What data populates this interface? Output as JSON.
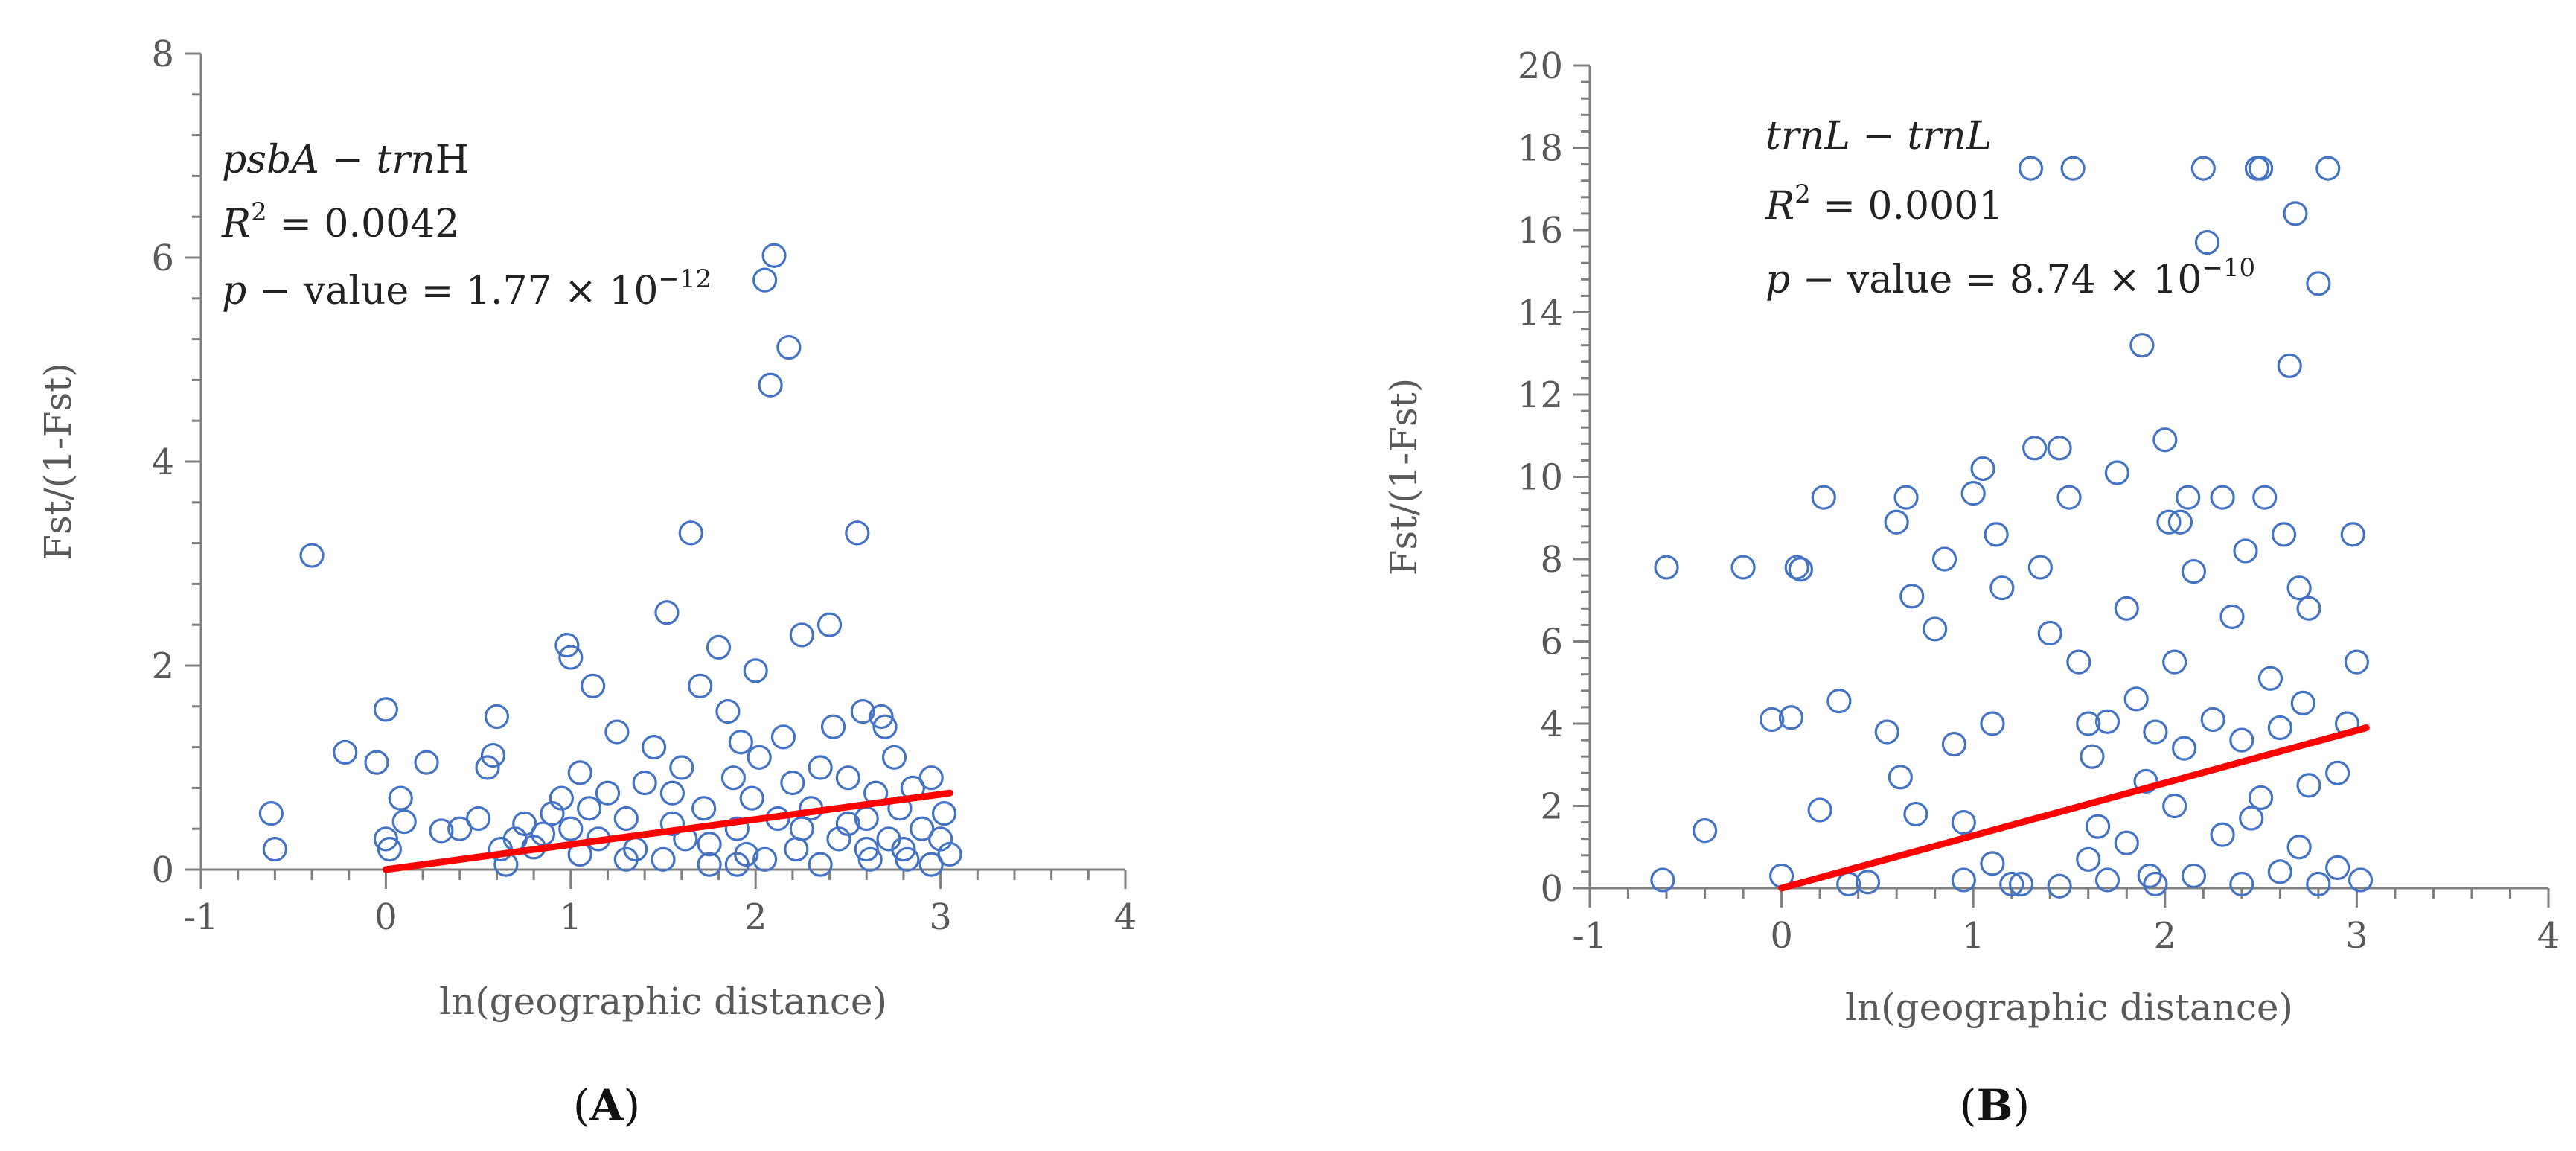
{
  "chart_data": [
    {
      "type": "scatter",
      "panel_label": "(A)",
      "panel_letter": "A",
      "title": "",
      "xlabel": "ln(geographic distance)",
      "ylabel": "Fst/(1-Fst)",
      "xlim": [
        -1,
        4
      ],
      "ylim": [
        0,
        8
      ],
      "xticks": [
        "-1",
        "0",
        "1",
        "2",
        "3",
        "4"
      ],
      "yticks": [
        "0",
        "2",
        "4",
        "6",
        "8"
      ],
      "annotation": {
        "gene_a": "psbA",
        "dash": " − ",
        "gene_b": "trn",
        "gene_suffix": "H",
        "r2_label": "R",
        "r2_sup": "2",
        "r2_value": " = 0.0042",
        "p_label": "p",
        "p_text": " − value = 1.77 × 10",
        "p_exp": "−12"
      },
      "trendline": {
        "color": "#ff0000",
        "x": [
          0,
          3.05
        ],
        "y": [
          0,
          0.75
        ]
      },
      "marker_color": "#4472c4",
      "points": [
        [
          -0.62,
          0.55
        ],
        [
          -0.6,
          0.2
        ],
        [
          -0.4,
          3.08
        ],
        [
          -0.22,
          1.15
        ],
        [
          -0.05,
          1.05
        ],
        [
          0.0,
          0.3
        ],
        [
          0.0,
          1.57
        ],
        [
          0.02,
          0.2
        ],
        [
          0.08,
          0.7
        ],
        [
          0.1,
          0.47
        ],
        [
          0.22,
          1.05
        ],
        [
          0.3,
          0.38
        ],
        [
          0.4,
          0.4
        ],
        [
          0.5,
          0.5
        ],
        [
          0.55,
          1.0
        ],
        [
          0.58,
          1.12
        ],
        [
          0.6,
          1.5
        ],
        [
          0.62,
          0.2
        ],
        [
          0.7,
          0.3
        ],
        [
          0.75,
          0.45
        ],
        [
          0.8,
          0.22
        ],
        [
          0.85,
          0.35
        ],
        [
          0.9,
          0.55
        ],
        [
          0.95,
          0.7
        ],
        [
          0.98,
          2.2
        ],
        [
          1.0,
          2.08
        ],
        [
          1.0,
          0.4
        ],
        [
          1.05,
          0.95
        ],
        [
          1.1,
          0.6
        ],
        [
          1.12,
          1.8
        ],
        [
          1.15,
          0.3
        ],
        [
          1.2,
          0.75
        ],
        [
          1.25,
          1.35
        ],
        [
          1.3,
          0.5
        ],
        [
          1.35,
          0.2
        ],
        [
          1.4,
          0.85
        ],
        [
          1.45,
          1.2
        ],
        [
          1.5,
          0.1
        ],
        [
          1.52,
          2.52
        ],
        [
          1.55,
          0.45
        ],
        [
          1.6,
          1.0
        ],
        [
          1.62,
          0.3
        ],
        [
          1.65,
          3.3
        ],
        [
          1.7,
          1.8
        ],
        [
          1.72,
          0.6
        ],
        [
          1.75,
          0.25
        ],
        [
          1.8,
          2.18
        ],
        [
          1.85,
          1.55
        ],
        [
          1.88,
          0.9
        ],
        [
          1.9,
          0.4
        ],
        [
          1.92,
          1.25
        ],
        [
          1.95,
          0.15
        ],
        [
          1.98,
          0.7
        ],
        [
          2.0,
          1.95
        ],
        [
          2.02,
          1.1
        ],
        [
          2.05,
          5.78
        ],
        [
          2.08,
          4.75
        ],
        [
          2.1,
          6.02
        ],
        [
          2.12,
          0.5
        ],
        [
          2.15,
          1.3
        ],
        [
          2.18,
          5.12
        ],
        [
          2.2,
          0.85
        ],
        [
          2.22,
          0.2
        ],
        [
          2.25,
          2.3
        ],
        [
          2.3,
          0.6
        ],
        [
          2.35,
          1.0
        ],
        [
          2.4,
          2.4
        ],
        [
          2.42,
          1.4
        ],
        [
          2.45,
          0.3
        ],
        [
          2.5,
          0.9
        ],
        [
          2.55,
          3.3
        ],
        [
          2.58,
          1.55
        ],
        [
          2.6,
          0.5
        ],
        [
          2.62,
          0.1
        ],
        [
          2.65,
          0.75
        ],
        [
          2.68,
          1.5
        ],
        [
          2.7,
          1.4
        ],
        [
          2.72,
          0.3
        ],
        [
          2.75,
          1.1
        ],
        [
          2.78,
          0.6
        ],
        [
          2.8,
          0.2
        ],
        [
          2.85,
          0.8
        ],
        [
          2.9,
          0.4
        ],
        [
          2.95,
          0.05
        ],
        [
          3.0,
          0.3
        ],
        [
          3.02,
          0.55
        ],
        [
          3.05,
          0.15
        ],
        [
          1.3,
          0.1
        ],
        [
          1.75,
          0.05
        ],
        [
          2.05,
          0.1
        ],
        [
          2.35,
          0.05
        ],
        [
          2.6,
          0.2
        ],
        [
          2.82,
          0.1
        ],
        [
          1.55,
          0.75
        ],
        [
          2.25,
          0.4
        ],
        [
          1.05,
          0.15
        ],
        [
          0.65,
          0.05
        ],
        [
          2.95,
          0.9
        ],
        [
          1.9,
          0.05
        ],
        [
          2.5,
          0.45
        ]
      ]
    },
    {
      "type": "scatter",
      "panel_label": "(B)",
      "panel_letter": "B",
      "title": "",
      "xlabel": "ln(geographic distance)",
      "ylabel": "Fst/(1-Fst)",
      "xlim": [
        -1,
        4
      ],
      "ylim": [
        0,
        20
      ],
      "xticks": [
        "-1",
        "0",
        "1",
        "2",
        "3",
        "4"
      ],
      "yticks": [
        "0",
        "2",
        "4",
        "6",
        "8",
        "10",
        "12",
        "14",
        "16",
        "18",
        "20"
      ],
      "annotation": {
        "gene_a": "trnL",
        "dash": " − ",
        "gene_b": "trnL",
        "gene_suffix": "",
        "r2_label": "R",
        "r2_sup": "2",
        "r2_value": " = 0.0001",
        "p_label": "p",
        "p_text": " − value = 8.74 × 10",
        "p_exp": "−10"
      },
      "trendline": {
        "color": "#ff0000",
        "x": [
          0,
          3.05
        ],
        "y": [
          0,
          3.9
        ]
      },
      "marker_color": "#4472c4",
      "points": [
        [
          -0.62,
          0.2
        ],
        [
          -0.6,
          7.8
        ],
        [
          -0.4,
          1.4
        ],
        [
          -0.2,
          7.8
        ],
        [
          -0.05,
          4.1
        ],
        [
          0.0,
          0.3
        ],
        [
          0.05,
          4.15
        ],
        [
          0.08,
          7.8
        ],
        [
          0.1,
          7.75
        ],
        [
          0.2,
          1.9
        ],
        [
          0.22,
          9.5
        ],
        [
          0.3,
          4.55
        ],
        [
          0.35,
          0.1
        ],
        [
          0.45,
          0.15
        ],
        [
          0.55,
          3.8
        ],
        [
          0.6,
          8.9
        ],
        [
          0.62,
          2.7
        ],
        [
          0.65,
          9.5
        ],
        [
          0.68,
          7.1
        ],
        [
          0.7,
          1.8
        ],
        [
          0.8,
          6.3
        ],
        [
          0.85,
          8.0
        ],
        [
          0.9,
          3.5
        ],
        [
          0.95,
          1.6
        ],
        [
          1.0,
          9.6
        ],
        [
          1.05,
          10.2
        ],
        [
          1.1,
          4.0
        ],
        [
          1.12,
          8.6
        ],
        [
          1.15,
          7.3
        ],
        [
          1.2,
          0.1
        ],
        [
          1.3,
          17.5
        ],
        [
          1.32,
          10.7
        ],
        [
          1.35,
          7.8
        ],
        [
          1.4,
          6.2
        ],
        [
          1.45,
          10.7
        ],
        [
          1.5,
          9.5
        ],
        [
          1.52,
          17.5
        ],
        [
          1.55,
          5.5
        ],
        [
          1.6,
          4.0
        ],
        [
          1.62,
          3.2
        ],
        [
          1.65,
          1.5
        ],
        [
          1.7,
          4.05
        ],
        [
          1.75,
          10.1
        ],
        [
          1.8,
          6.8
        ],
        [
          1.85,
          4.6
        ],
        [
          1.88,
          13.2
        ],
        [
          1.9,
          2.6
        ],
        [
          1.92,
          0.3
        ],
        [
          1.95,
          3.8
        ],
        [
          2.0,
          10.9
        ],
        [
          2.02,
          8.9
        ],
        [
          2.05,
          5.5
        ],
        [
          2.08,
          8.9
        ],
        [
          2.1,
          3.4
        ],
        [
          2.12,
          9.5
        ],
        [
          2.15,
          7.7
        ],
        [
          2.2,
          17.5
        ],
        [
          2.22,
          15.7
        ],
        [
          2.25,
          4.1
        ],
        [
          2.3,
          9.5
        ],
        [
          2.35,
          6.6
        ],
        [
          2.4,
          3.6
        ],
        [
          2.42,
          8.2
        ],
        [
          2.48,
          17.5
        ],
        [
          2.5,
          17.5
        ],
        [
          2.52,
          9.5
        ],
        [
          2.55,
          5.1
        ],
        [
          2.6,
          3.9
        ],
        [
          2.62,
          8.6
        ],
        [
          2.65,
          12.7
        ],
        [
          2.68,
          16.4
        ],
        [
          2.7,
          7.3
        ],
        [
          2.72,
          4.5
        ],
        [
          2.75,
          6.8
        ],
        [
          2.8,
          14.7
        ],
        [
          2.85,
          17.5
        ],
        [
          2.9,
          2.8
        ],
        [
          2.95,
          4.0
        ],
        [
          2.98,
          8.6
        ],
        [
          3.0,
          5.5
        ],
        [
          1.25,
          0.1
        ],
        [
          1.45,
          0.05
        ],
        [
          1.7,
          0.2
        ],
        [
          1.95,
          0.1
        ],
        [
          2.15,
          0.3
        ],
        [
          2.4,
          0.1
        ],
        [
          2.6,
          0.4
        ],
        [
          2.8,
          0.1
        ],
        [
          3.02,
          0.2
        ],
        [
          1.1,
          0.6
        ],
        [
          1.8,
          1.1
        ],
        [
          2.3,
          1.3
        ],
        [
          2.5,
          2.2
        ],
        [
          2.7,
          1.0
        ],
        [
          2.9,
          0.5
        ],
        [
          0.95,
          0.2
        ],
        [
          1.6,
          0.7
        ],
        [
          2.05,
          2.0
        ],
        [
          2.45,
          1.7
        ],
        [
          2.75,
          2.5
        ]
      ]
    }
  ]
}
